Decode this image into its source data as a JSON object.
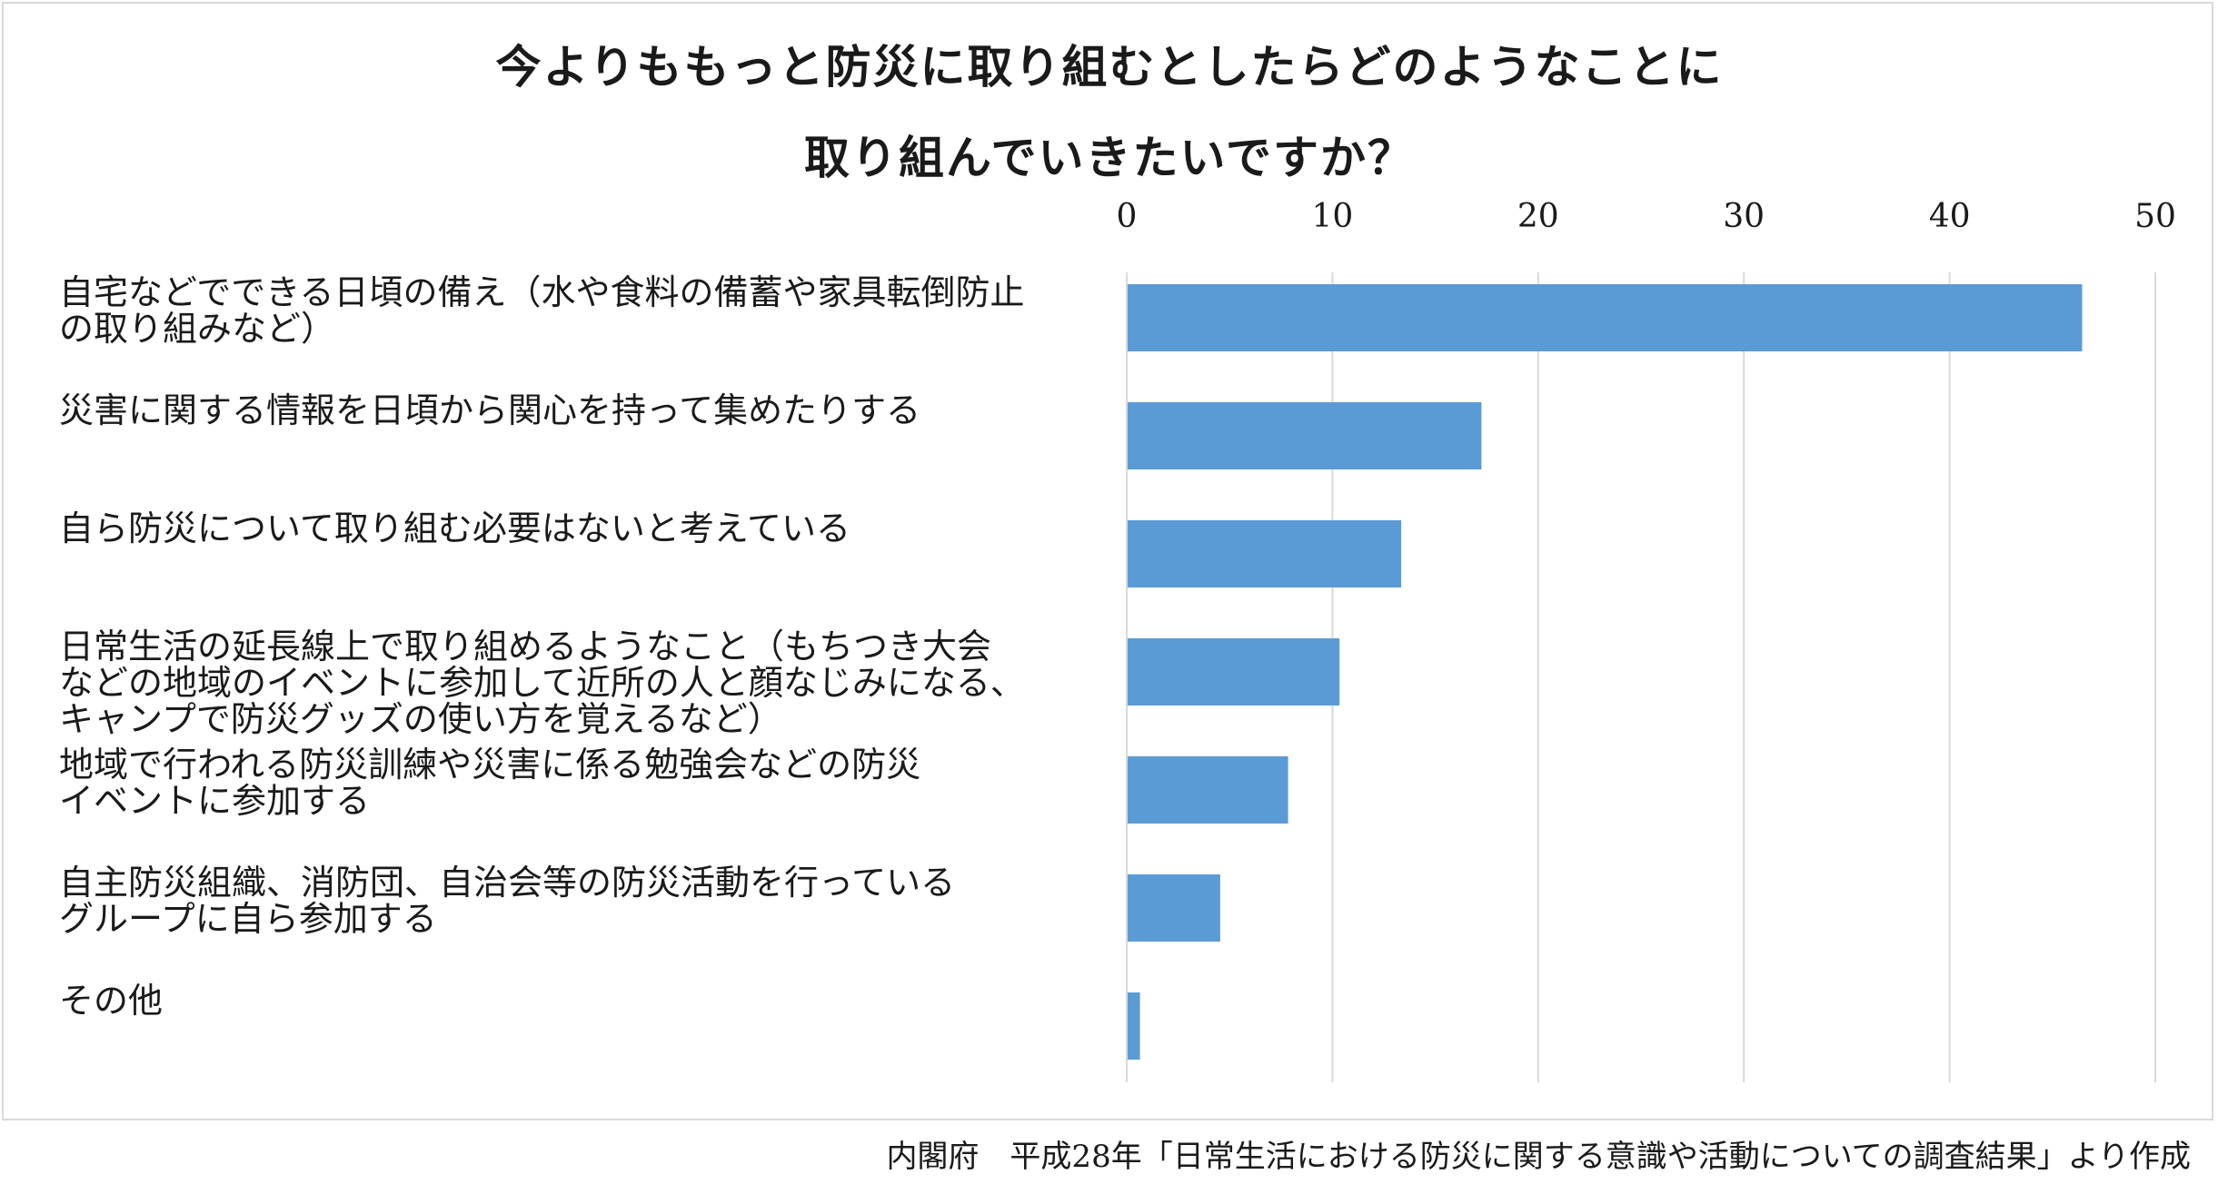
{
  "chart_data": {
    "type": "bar",
    "orientation": "horizontal",
    "title": "今よりももっと防災に取り組むとしたらどのようなことに\n取り組んでいきたいですか？",
    "categories": [
      "自宅などでできる日頃の備え（水や食料の備蓄や家具転倒防止\nの取り組みなど）",
      "災害に関する情報を日頃から関心を持って集めたりする",
      "自ら防災について取り組む必要はないと考えている",
      "日常生活の延長線上で取り組めるようなこと（もちつき大会\nなどの地域のイベントに参加して近所の人と顔なじみになる、\nキャンプで防災グッズの使い方を覚えるなど）",
      "地域で行われる防災訓練や災害に係る勉強会などの防災\nイベントに参加する",
      "自主防災組織、消防団、自治会等の防災活動を行っている\nグループに自ら参加する",
      "その他"
    ],
    "values": [
      46.4,
      17.2,
      13.3,
      10.3,
      7.8,
      4.5,
      0.6
    ],
    "xlim": [
      0,
      50
    ],
    "ticks": [
      0,
      10,
      20,
      30,
      40,
      50
    ],
    "tick_labels": [
      "0",
      "10",
      "20",
      "30",
      "40",
      "50"
    ],
    "xaxis_position": "top",
    "grid": true,
    "legend": "none",
    "bar_color": "#5b9bd5",
    "grid_color": "#d9d9d9",
    "source": "内閣府　平成28年「日常生活における防災に関する意識や活動についての調査結果」より作成"
  }
}
